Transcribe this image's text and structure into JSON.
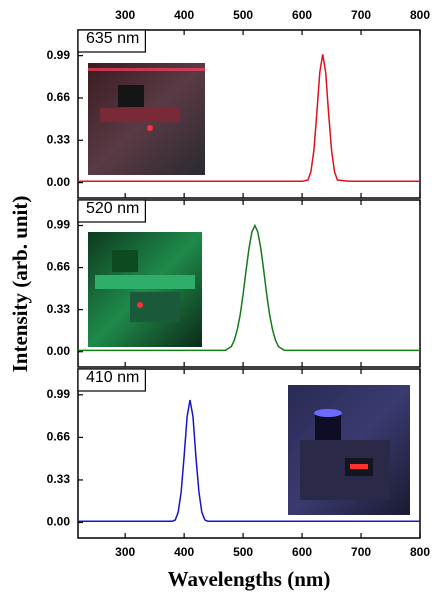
{
  "chart_data": [
    {
      "type": "line",
      "label": "635 nm",
      "x_tick_side": "top",
      "x": [
        220,
        300,
        400,
        500,
        580,
        600,
        610,
        615,
        620,
        625,
        630,
        635,
        640,
        645,
        650,
        655,
        660,
        680,
        700,
        800
      ],
      "series": [
        {
          "name": "635 nm",
          "color": "#e0101a",
          "values": [
            0.01,
            0.01,
            0.01,
            0.01,
            0.01,
            0.01,
            0.02,
            0.085,
            0.25,
            0.54,
            0.86,
            1.0,
            0.86,
            0.54,
            0.25,
            0.085,
            0.02,
            0.01,
            0.01,
            0.01
          ]
        }
      ],
      "xlim": [
        220,
        800
      ],
      "xticks": [
        300,
        400,
        500,
        600,
        700,
        800
      ],
      "ylim": [
        -0.12,
        1.19
      ],
      "yticks": [
        {
          "value": 0,
          "label": "0.00"
        },
        0.33,
        0.66,
        0.99
      ]
    },
    {
      "type": "line",
      "label": "520 nm",
      "x_tick_side": "none",
      "ylabel": "Intensity (arb. unit)",
      "x": [
        220,
        300,
        400,
        450,
        470,
        480,
        485,
        490,
        495,
        500,
        505,
        510,
        515,
        520,
        525,
        530,
        535,
        540,
        545,
        550,
        555,
        560,
        570,
        600,
        700,
        800
      ],
      "series": [
        {
          "name": "520 nm",
          "color": "#167a16",
          "values": [
            0.01,
            0.01,
            0.01,
            0.01,
            0.01,
            0.04,
            0.09,
            0.17,
            0.29,
            0.45,
            0.64,
            0.81,
            0.94,
            0.99,
            0.94,
            0.81,
            0.64,
            0.45,
            0.29,
            0.17,
            0.09,
            0.04,
            0.01,
            0.01,
            0.01,
            0.01
          ]
        }
      ],
      "xlim": [
        220,
        800
      ],
      "xticks": [
        300,
        400,
        500,
        600,
        700,
        800
      ],
      "ylim": [
        -0.12,
        1.19
      ],
      "yticks": [
        {
          "value": 0,
          "label": "0.00"
        },
        0.33,
        0.66,
        0.99
      ]
    },
    {
      "type": "line",
      "label": "410 nm",
      "x_tick_side": "bottom",
      "xlabel": "Wavelengths (nm)",
      "x": [
        220,
        300,
        360,
        380,
        385,
        390,
        395,
        400,
        405,
        410,
        415,
        420,
        425,
        430,
        435,
        440,
        460,
        500,
        600,
        700,
        800
      ],
      "series": [
        {
          "name": "410 nm",
          "color": "#1515c8",
          "values": [
            0.01,
            0.01,
            0.01,
            0.01,
            0.02,
            0.08,
            0.24,
            0.51,
            0.82,
            0.95,
            0.82,
            0.51,
            0.24,
            0.08,
            0.02,
            0.01,
            0.01,
            0.01,
            0.01,
            0.01,
            0.01
          ]
        }
      ],
      "xlim": [
        220,
        800
      ],
      "xticks": [
        300,
        400,
        500,
        600,
        700,
        800
      ],
      "ylim": [
        -0.12,
        1.19
      ],
      "yticks": [
        {
          "value": 0,
          "label": "0.00"
        },
        0.33,
        0.66,
        0.99
      ]
    }
  ]
}
